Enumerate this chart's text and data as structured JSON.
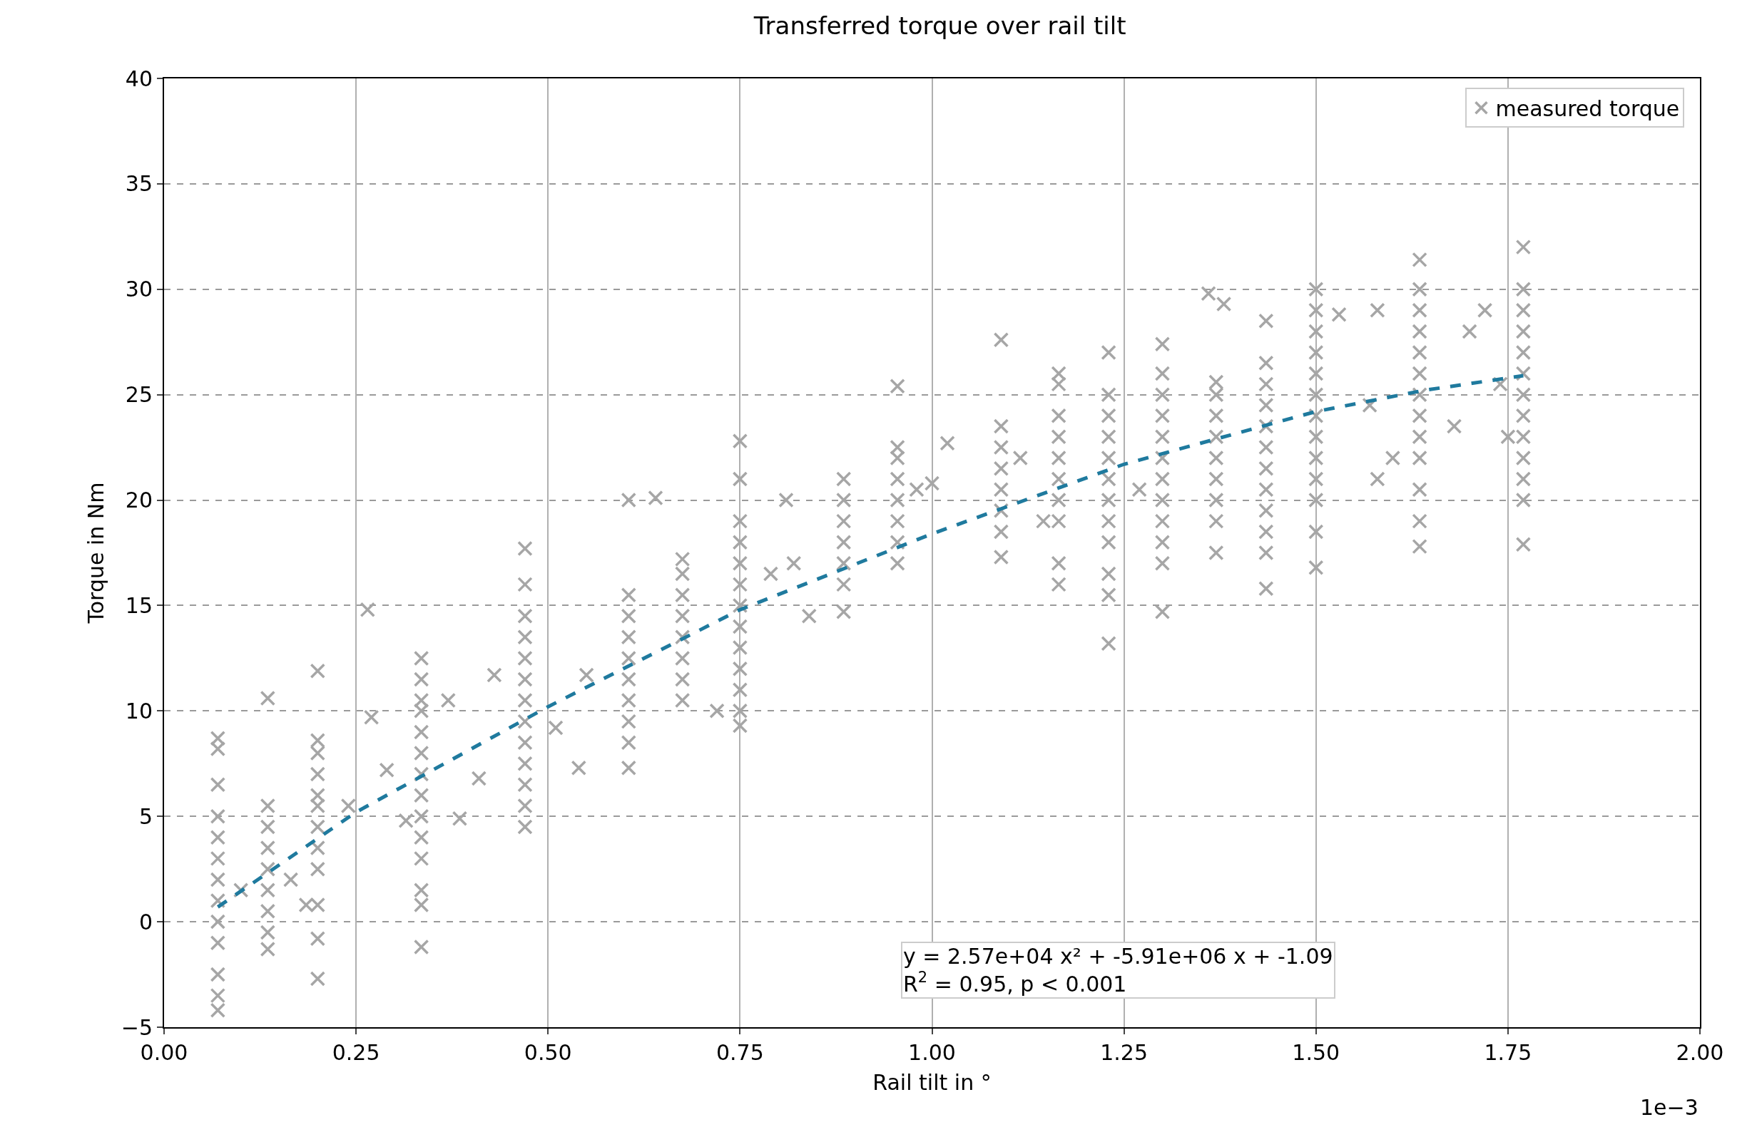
{
  "chart_data": {
    "type": "scatter",
    "title": "Transferred torque over rail tilt",
    "xlabel": "Rail tilt in °",
    "ylabel": "Torque in Nm",
    "xlim": [
      0,
      2.0
    ],
    "xticks": [
      {
        "value": 0,
        "label": "0.00"
      },
      0.25,
      {
        "value": 0.5,
        "label": "0.50"
      },
      0.75,
      {
        "value": 1.0,
        "label": "1.00"
      },
      1.25,
      {
        "value": 1.5,
        "label": "1.50"
      },
      1.75,
      {
        "value": 2.0,
        "label": "2.00"
      }
    ],
    "ylim": [
      -5,
      40
    ],
    "yticks": [
      {
        "value": -5,
        "label": "−5"
      },
      0,
      5,
      10,
      15,
      20,
      25,
      30,
      35,
      40
    ],
    "grid": true,
    "legend": "top right",
    "annotations": [
      "1e−3",
      "y = 2.57e+04 x² + -5.91e+06 x + -1.09\nR$^{2}$ = 0.95, p < 0.001"
    ],
    "series": [
      {
        "name": "measured torque",
        "color": "#a6a6a6",
        "marker": "cross",
        "x": [
          0.07,
          0.07,
          0.07,
          0.07,
          0.07,
          0.07,
          0.07,
          0.07,
          0.07,
          0.07,
          0.07,
          0.07,
          0.07,
          0.135,
          0.135,
          0.135,
          0.135,
          0.135,
          0.135,
          0.135,
          0.135,
          0.135,
          0.2,
          0.2,
          0.2,
          0.2,
          0.2,
          0.2,
          0.2,
          0.2,
          0.2,
          0.2,
          0.2,
          0.2,
          0.335,
          0.335,
          0.335,
          0.335,
          0.335,
          0.335,
          0.335,
          0.335,
          0.335,
          0.335,
          0.335,
          0.335,
          0.335,
          0.335,
          0.47,
          0.47,
          0.47,
          0.47,
          0.47,
          0.47,
          0.47,
          0.47,
          0.47,
          0.47,
          0.47,
          0.47,
          0.47,
          0.605,
          0.605,
          0.605,
          0.605,
          0.605,
          0.605,
          0.605,
          0.605,
          0.605,
          0.605,
          0.675,
          0.675,
          0.675,
          0.675,
          0.675,
          0.675,
          0.675,
          0.675,
          0.75,
          0.75,
          0.75,
          0.75,
          0.75,
          0.75,
          0.75,
          0.75,
          0.75,
          0.75,
          0.75,
          0.75,
          0.75,
          0.885,
          0.885,
          0.885,
          0.885,
          0.885,
          0.885,
          0.885,
          0.955,
          0.955,
          0.955,
          0.955,
          0.955,
          0.955,
          0.955,
          0.955,
          1.09,
          1.09,
          1.09,
          1.09,
          1.09,
          1.09,
          1.09,
          1.09,
          1.165,
          1.165,
          1.165,
          1.165,
          1.165,
          1.165,
          1.165,
          1.165,
          1.165,
          1.165,
          1.23,
          1.23,
          1.23,
          1.23,
          1.23,
          1.23,
          1.23,
          1.23,
          1.23,
          1.23,
          1.23,
          1.23,
          1.3,
          1.3,
          1.3,
          1.3,
          1.3,
          1.3,
          1.3,
          1.3,
          1.3,
          1.3,
          1.3,
          1.3,
          1.37,
          1.37,
          1.37,
          1.37,
          1.37,
          1.37,
          1.37,
          1.37,
          1.37,
          1.435,
          1.435,
          1.435,
          1.435,
          1.435,
          1.435,
          1.435,
          1.435,
          1.435,
          1.435,
          1.435,
          1.435,
          1.5,
          1.5,
          1.5,
          1.5,
          1.5,
          1.5,
          1.5,
          1.5,
          1.5,
          1.5,
          1.5,
          1.5,
          1.5,
          1.635,
          1.635,
          1.635,
          1.635,
          1.635,
          1.635,
          1.635,
          1.635,
          1.635,
          1.635,
          1.635,
          1.635,
          1.635,
          1.77,
          1.77,
          1.77,
          1.77,
          1.77,
          1.77,
          1.77,
          1.77,
          1.77,
          1.77,
          1.77,
          1.77,
          1.77,
          0.1,
          0.165,
          0.185,
          0.24,
          0.265,
          0.27,
          0.29,
          0.315,
          0.37,
          0.385,
          0.41,
          0.43,
          0.51,
          0.54,
          0.55,
          0.64,
          0.72,
          0.79,
          0.82,
          0.81,
          0.84,
          0.98,
          1.02,
          1.0,
          1.115,
          1.145,
          1.27,
          1.36,
          1.38,
          1.53,
          1.57,
          1.58,
          1.6,
          1.58,
          1.68,
          1.7,
          1.72,
          1.74,
          1.75
        ],
        "values": [
          -4.2,
          -3.5,
          -2.5,
          -1,
          0,
          1,
          2,
          3,
          4,
          5,
          6.5,
          8.2,
          8.7,
          -1.3,
          -0.5,
          0.5,
          1.5,
          2.5,
          3.5,
          4.5,
          5.5,
          10.6,
          -2.7,
          -0.8,
          0.8,
          2.5,
          3.5,
          4.5,
          5.5,
          6,
          7,
          8,
          8.6,
          11.9,
          -1.2,
          0.8,
          1.5,
          3,
          4,
          5,
          6,
          7,
          8,
          9,
          10,
          10.5,
          11.5,
          12.5,
          4.5,
          5.5,
          6.5,
          7.5,
          8.5,
          9.5,
          10.5,
          11.5,
          12.5,
          13.5,
          14.5,
          16,
          17.7,
          7.3,
          8.5,
          9.5,
          10.5,
          11.5,
          12.5,
          13.5,
          14.5,
          15.5,
          20,
          10.5,
          11.5,
          12.5,
          13.5,
          14.5,
          15.5,
          16.5,
          17.2,
          9.3,
          10,
          11,
          12,
          13,
          14,
          15,
          16,
          17,
          18,
          19,
          21,
          22.8,
          14.7,
          16,
          17,
          18,
          19,
          20,
          21,
          17,
          18,
          19,
          20,
          21,
          22,
          22.5,
          25.4,
          17.3,
          18.5,
          19.5,
          20.5,
          21.5,
          22.5,
          23.5,
          27.6,
          16,
          17,
          19,
          20,
          21,
          22,
          23,
          24,
          25.5,
          26,
          13.2,
          15.5,
          16.5,
          18,
          19,
          20,
          21,
          22,
          23,
          24,
          25,
          27,
          14.7,
          17,
          18,
          19,
          20,
          21,
          22,
          23,
          24,
          25,
          26,
          27.4,
          17.5,
          19,
          20,
          21,
          22,
          23,
          24,
          25,
          25.6,
          15.8,
          17.5,
          18.5,
          19.5,
          20.5,
          21.5,
          22.5,
          23.5,
          24.5,
          25.5,
          26.5,
          28.5,
          16.8,
          18.5,
          20,
          21,
          22,
          23,
          24,
          25,
          26,
          27,
          28,
          29,
          30,
          17.8,
          19,
          20.5,
          22,
          23,
          24,
          25,
          26,
          27,
          28,
          29,
          30,
          31.4,
          17.9,
          20,
          21,
          22,
          23,
          24,
          25,
          26,
          27,
          28,
          29,
          30,
          32,
          1.5,
          2,
          0.8,
          5.5,
          14.8,
          9.7,
          7.2,
          4.8,
          10.5,
          4.9,
          6.8,
          11.7,
          9.2,
          7.3,
          11.7,
          20.1,
          10,
          16.5,
          17,
          20,
          14.5,
          20.5,
          22.7,
          20.8,
          22,
          19,
          20.5,
          29.8,
          29.3,
          28.8,
          24.5,
          29,
          22,
          21,
          23.5,
          28,
          29,
          25.5,
          23
        ]
      },
      {
        "type": "line",
        "color": "#1f7a9e",
        "line_style": "dashed",
        "marker": "none",
        "x": [
          0.07,
          0.25,
          0.5,
          0.75,
          1.0,
          1.25,
          1.5,
          1.64,
          1.77
        ],
        "values": [
          0.7,
          5.2,
          10.2,
          14.8,
          18.4,
          21.7,
          24.2,
          25.2,
          25.9
        ]
      }
    ]
  }
}
